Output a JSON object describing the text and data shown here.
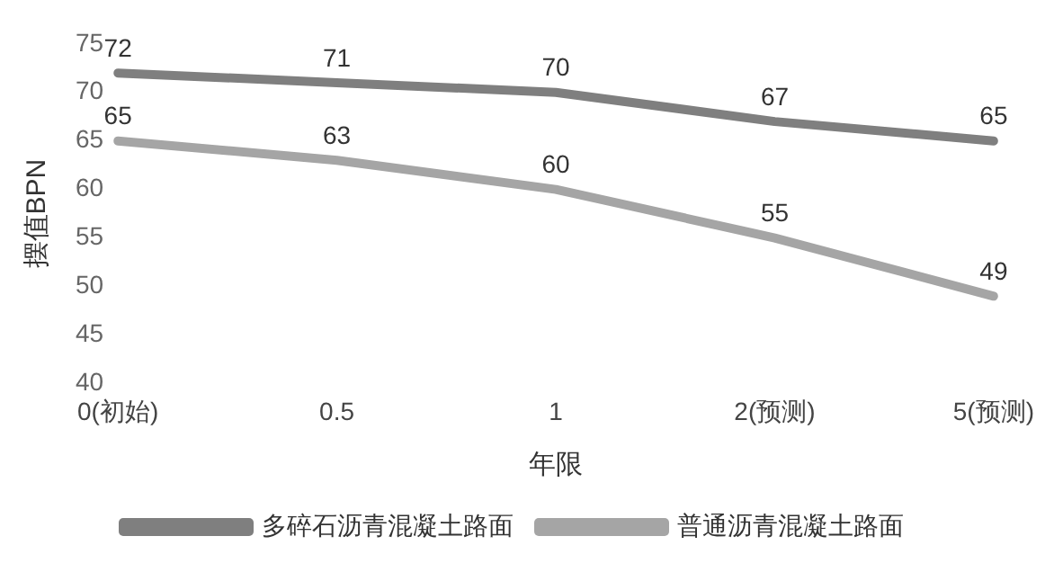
{
  "chart_data": {
    "type": "line",
    "xlabel": "年限",
    "ylabel": "摆值BPN",
    "categories": [
      "0(初始)",
      "0.5",
      "1",
      "2(预测)",
      "5(预测)"
    ],
    "series": [
      {
        "name": "多碎石沥青混凝土路面",
        "color": "#7f7f7f",
        "values": [
          72,
          71,
          70,
          67,
          65
        ]
      },
      {
        "name": "普通沥青混凝土路面",
        "color": "#a5a5a5",
        "values": [
          65,
          63,
          60,
          55,
          49
        ]
      }
    ],
    "ylim": [
      40,
      75
    ],
    "yticks": [
      40,
      45,
      50,
      55,
      60,
      65,
      70,
      75
    ],
    "grid": false,
    "legend": "bottom",
    "marker": "none",
    "line_style": "solid",
    "data_labels": true
  }
}
